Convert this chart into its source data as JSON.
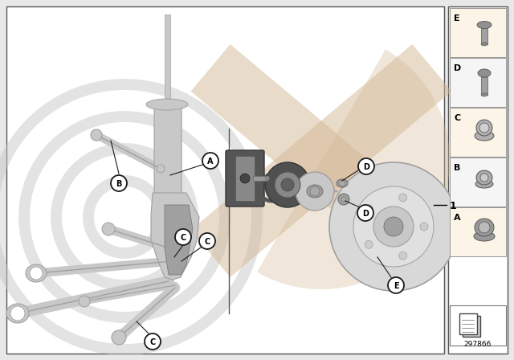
{
  "bg_color": "#e8e8e8",
  "main_bg": "#e0e0e0",
  "border_color": "#555555",
  "part_number": "297866",
  "label_letters": [
    "A",
    "B",
    "C",
    "D",
    "E"
  ],
  "ref_number": "1",
  "watermark_gray": "#c8c8c8",
  "watermark_tan": "#d4b896",
  "line_color": "#333333",
  "panel_bg_odd": "#fdf4e8",
  "panel_bg_even": "#f5f5f5",
  "part_color_dark": "#707070",
  "part_color_mid": "#a0a0a0",
  "part_color_light": "#c8c8c8",
  "part_color_very_light": "#d8d8d8"
}
